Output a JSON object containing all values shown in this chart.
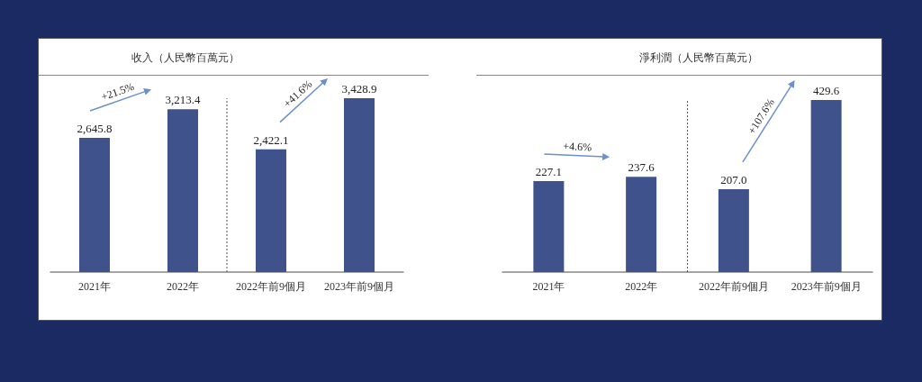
{
  "chart_data": [
    {
      "type": "bar",
      "title": "收入（人民幣百萬元）",
      "categories": [
        "2021年",
        "2022年",
        "2022年前9個月",
        "2023年前9個月"
      ],
      "values": [
        2645.8,
        3213.4,
        2422.1,
        3428.9
      ],
      "color": "#3f528c",
      "data_labels": true,
      "value_labels": [
        "2,645.8",
        "3,213.4",
        "2,422.1",
        "3,428.9"
      ],
      "annotations": [
        "+21.5%",
        "+41.6%"
      ]
    },
    {
      "type": "bar",
      "title": "淨利潤（人民幣百萬元）",
      "categories": [
        "2021年",
        "2022年",
        "2022年前9個月",
        "2023年前9個月"
      ],
      "values": [
        227.1,
        237.6,
        207.0,
        429.6
      ],
      "color": "#3f528c",
      "data_labels": true,
      "value_labels": [
        "227.1",
        "237.6",
        "207.0",
        "429.6"
      ],
      "annotations": [
        "+4.6%",
        "+107.6%"
      ]
    }
  ]
}
